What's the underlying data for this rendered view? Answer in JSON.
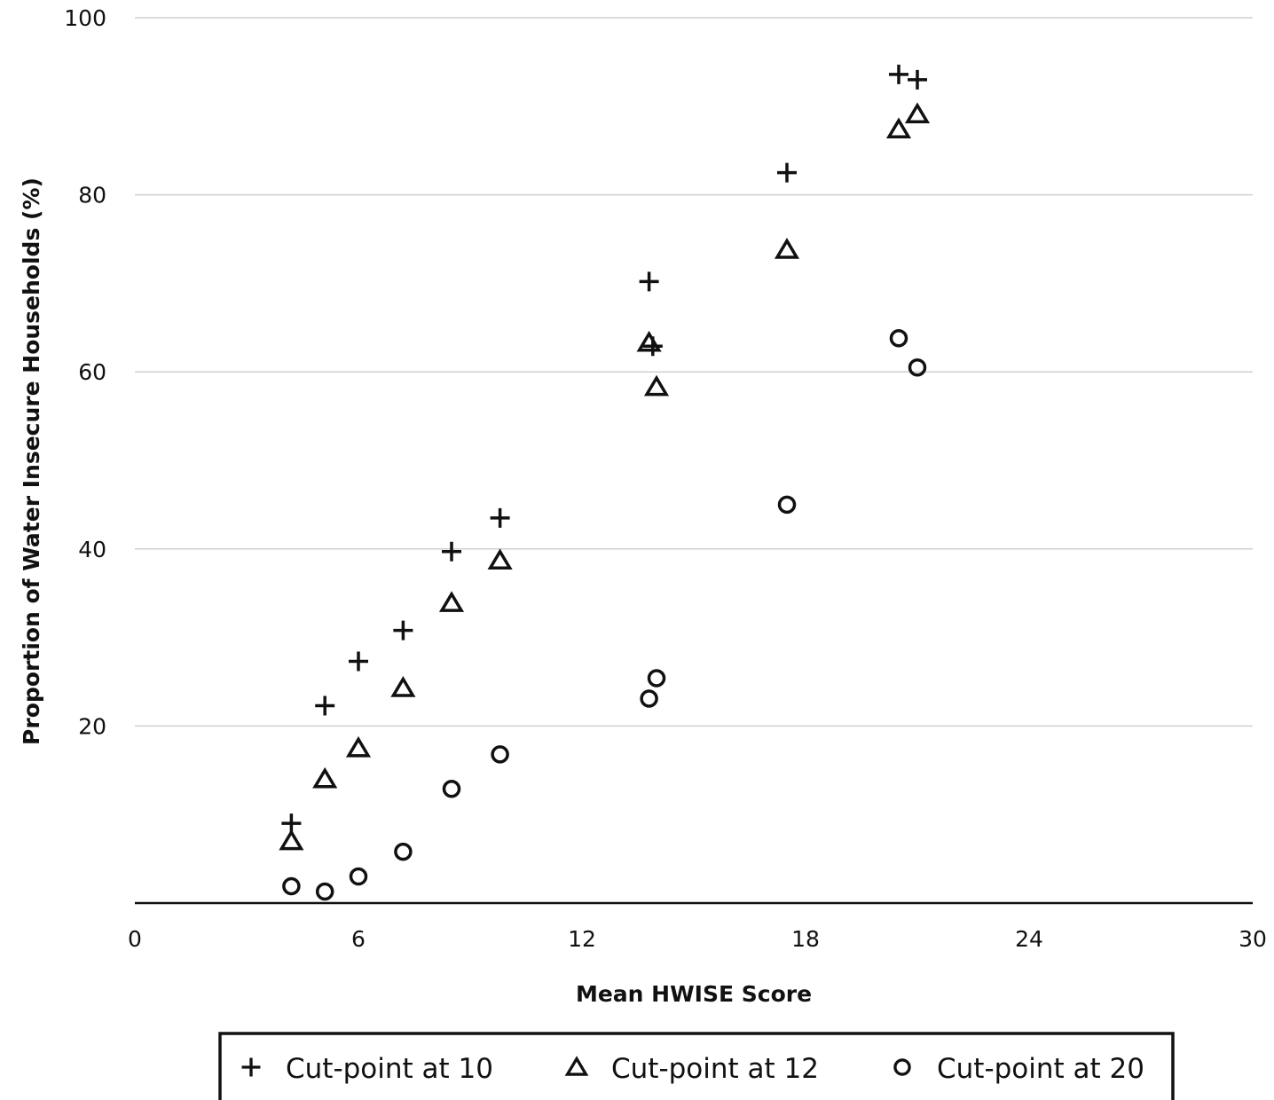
{
  "chart_data": {
    "type": "scatter",
    "title": "",
    "xlabel": "Mean HWISE Score",
    "ylabel": "Proportion of Water Insecure Households (%)",
    "xlim": [
      0,
      30
    ],
    "ylim": [
      0,
      100
    ],
    "x_ticks": [
      "0",
      "6",
      "12",
      "18",
      "24",
      "30"
    ],
    "y_ticks": [
      "20",
      "40",
      "60",
      "80",
      "100"
    ],
    "grid": "horizontal",
    "legend_position": "bottom",
    "series": [
      {
        "name": "Cut-point at 10",
        "marker": "plus",
        "points": [
          {
            "x": 4.2,
            "y": 9.0
          },
          {
            "x": 5.1,
            "y": 22.3
          },
          {
            "x": 6.0,
            "y": 27.3
          },
          {
            "x": 7.2,
            "y": 30.8
          },
          {
            "x": 8.5,
            "y": 39.7
          },
          {
            "x": 9.8,
            "y": 43.5
          },
          {
            "x": 13.8,
            "y": 70.2
          },
          {
            "x": 13.9,
            "y": 62.9
          },
          {
            "x": 17.5,
            "y": 82.5
          },
          {
            "x": 20.5,
            "y": 93.6
          },
          {
            "x": 21.0,
            "y": 93.0
          }
        ]
      },
      {
        "name": "Cut-point at 12",
        "marker": "triangle",
        "points": [
          {
            "x": 4.2,
            "y": 7.0
          },
          {
            "x": 5.1,
            "y": 14.0
          },
          {
            "x": 6.0,
            "y": 17.5
          },
          {
            "x": 7.2,
            "y": 24.3
          },
          {
            "x": 8.5,
            "y": 33.9
          },
          {
            "x": 9.8,
            "y": 38.7
          },
          {
            "x": 13.8,
            "y": 63.3
          },
          {
            "x": 14.0,
            "y": 58.3
          },
          {
            "x": 17.5,
            "y": 73.8
          },
          {
            "x": 20.5,
            "y": 87.4
          },
          {
            "x": 21.0,
            "y": 89.1
          }
        ]
      },
      {
        "name": "Cut-point at 20",
        "marker": "circle",
        "points": [
          {
            "x": 4.2,
            "y": 1.9
          },
          {
            "x": 5.1,
            "y": 1.3
          },
          {
            "x": 6.0,
            "y": 3.0
          },
          {
            "x": 7.2,
            "y": 5.8
          },
          {
            "x": 8.5,
            "y": 12.9
          },
          {
            "x": 9.8,
            "y": 16.8
          },
          {
            "x": 13.8,
            "y": 23.1
          },
          {
            "x": 14.0,
            "y": 25.4
          },
          {
            "x": 17.5,
            "y": 45.0
          },
          {
            "x": 20.5,
            "y": 63.8
          },
          {
            "x": 21.0,
            "y": 60.5
          }
        ]
      }
    ]
  }
}
